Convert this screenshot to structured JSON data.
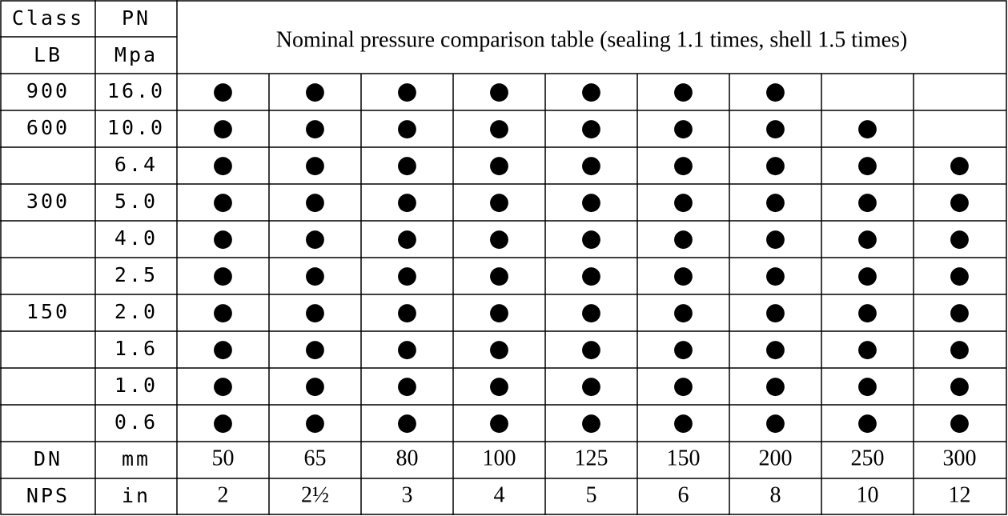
{
  "header": {
    "class": "Class",
    "pn": "PN",
    "lb": "LB",
    "mpa": "Mpa",
    "title": "Nominal pressure comparison table (sealing 1.1 times, shell 1.5 times)"
  },
  "rows": [
    {
      "lb": "900",
      "pn": "16.0",
      "marks": [
        "●",
        "●",
        "●",
        "●",
        "●",
        "●",
        "●"
      ]
    },
    {
      "lb": "600",
      "pn": "10.0",
      "marks": [
        "●",
        "●",
        "●",
        "●",
        "●",
        "●",
        "●",
        "●"
      ]
    },
    {
      "pn": "6.4",
      "marks": [
        "●",
        "●",
        "●",
        "●",
        "●",
        "●",
        "●",
        "●",
        "●"
      ]
    },
    {
      "lb": "300",
      "pn": "5.0",
      "marks": [
        "●",
        "●",
        "●",
        "●",
        "●",
        "●",
        "●",
        "●",
        "●"
      ]
    },
    {
      "pn": "4.0",
      "marks": [
        "●",
        "●",
        "●",
        "●",
        "●",
        "●",
        "●",
        "●",
        "●"
      ]
    },
    {
      "pn": "2.5",
      "marks": [
        "●",
        "●",
        "●",
        "●",
        "●",
        "●",
        "●",
        "●",
        "●"
      ]
    },
    {
      "lb": "150",
      "pn": "2.0",
      "marks": [
        "●",
        "●",
        "●",
        "●",
        "●",
        "●",
        "●",
        "●",
        "●"
      ]
    },
    {
      "pn": "1.6",
      "marks": [
        "●",
        "●",
        "●",
        "●",
        "●",
        "●",
        "●",
        "●",
        "●"
      ]
    },
    {
      "pn": "1.0",
      "marks": [
        "●",
        "●",
        "●",
        "●",
        "●",
        "●",
        "●",
        "●",
        "●"
      ]
    },
    {
      "pn": "0.6",
      "marks": [
        "●",
        "●",
        "●",
        "●",
        "●",
        "●",
        "●",
        "●",
        "●"
      ]
    }
  ],
  "footer": [
    {
      "label": "DN",
      "unit": "mm",
      "values": [
        "50",
        "65",
        "80",
        "100",
        "125",
        "150",
        "200",
        "250",
        "300"
      ]
    },
    {
      "label": "NPS",
      "unit": "in",
      "values": [
        "2",
        "2½",
        "3",
        "4",
        "5",
        "6",
        "8",
        "10",
        "12"
      ]
    }
  ]
}
